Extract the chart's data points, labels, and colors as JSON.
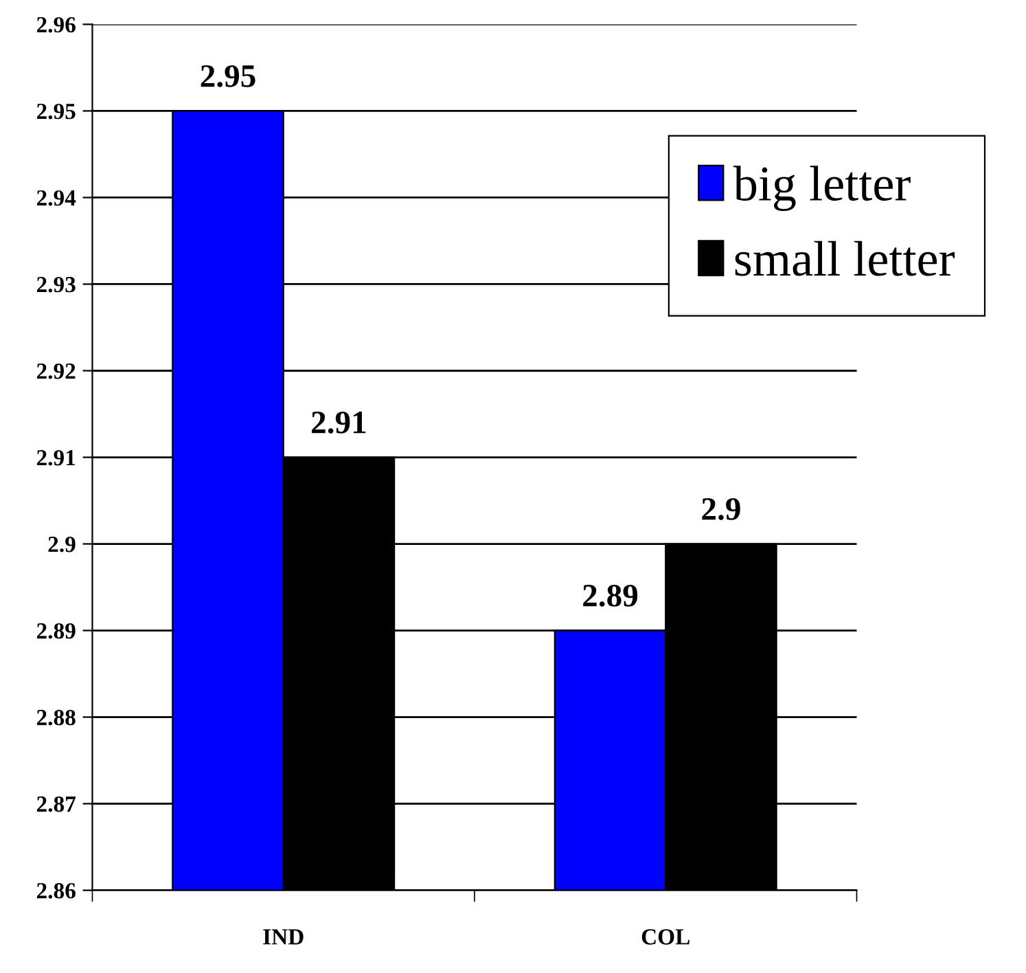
{
  "chart_data": {
    "type": "bar",
    "categories": [
      "IND",
      "COL"
    ],
    "series": [
      {
        "name": "big letter",
        "color": "#0000ff",
        "values": [
          2.95,
          2.89
        ]
      },
      {
        "name": "small letter",
        "color": "#000000",
        "values": [
          2.91,
          2.9
        ]
      }
    ],
    "ylim": [
      2.86,
      2.96
    ],
    "yticks": [
      2.86,
      2.87,
      2.88,
      2.89,
      2.9,
      2.91,
      2.92,
      2.93,
      2.94,
      2.95,
      2.96
    ],
    "grid": "y",
    "legend": "top right",
    "data_labels": true
  }
}
